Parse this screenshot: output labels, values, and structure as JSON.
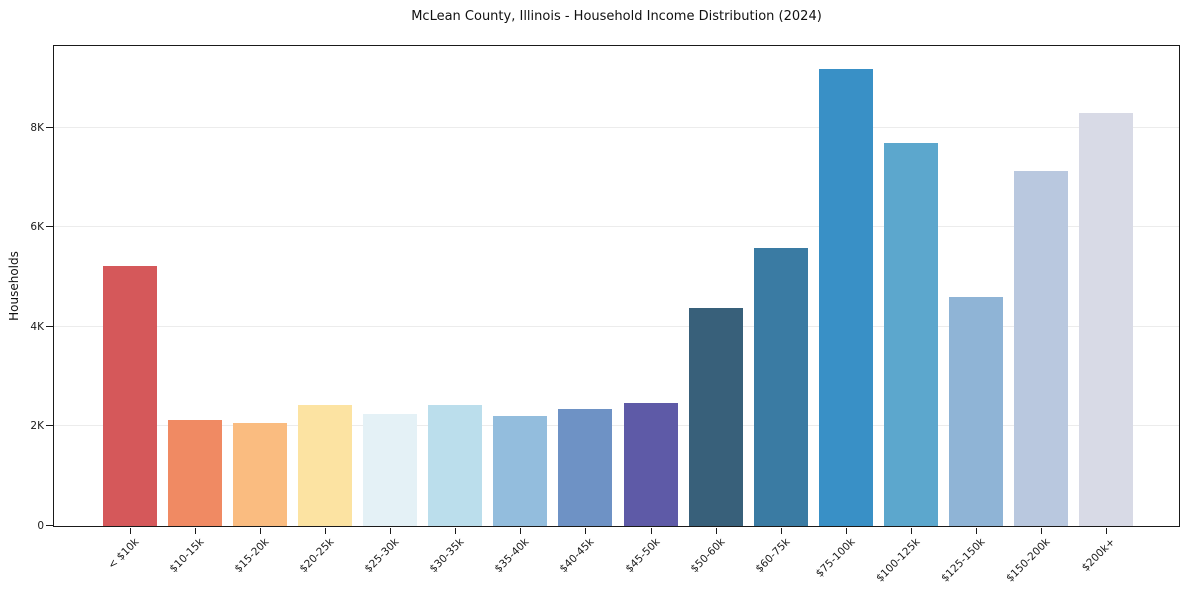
{
  "chart_data": {
    "type": "bar",
    "title": "McLean County, Illinois - Household Income Distribution (2024)",
    "xlabel": "",
    "ylabel": "Households",
    "categories": [
      "< $10k",
      "$10-15k",
      "$15-20k",
      "$20-25k",
      "$25-30k",
      "$30-35k",
      "$35-40k",
      "$40-45k",
      "$45-50k",
      "$50-60k",
      "$60-75k",
      "$75-100k",
      "$100-125k",
      "$125-150k",
      "$150-200k",
      "$200k+"
    ],
    "values": [
      5230,
      2120,
      2060,
      2430,
      2240,
      2430,
      2200,
      2360,
      2470,
      4380,
      5580,
      9180,
      7700,
      4600,
      7120,
      8290
    ],
    "bar_colors": [
      "#d5585a",
      "#f08a63",
      "#fabc80",
      "#fce3a2",
      "#e4f1f6",
      "#bbdeec",
      "#93bddd",
      "#6e92c5",
      "#5e5aa7",
      "#38607a",
      "#3a7ba3",
      "#3990c6",
      "#5ca7cd",
      "#8fb4d6",
      "#b9c8df",
      "#d8dae6"
    ],
    "ylim": [
      0,
      9640
    ],
    "ytick_values": [
      0,
      2000,
      4000,
      6000,
      8000
    ],
    "ytick_labels": [
      "0",
      "2K",
      "4K",
      "6K",
      "8K"
    ],
    "grid": "horizontal",
    "legend": "none",
    "axis_color": "#1a1a1a",
    "grid_color": "#ececec",
    "background_color": "#ffffff"
  }
}
